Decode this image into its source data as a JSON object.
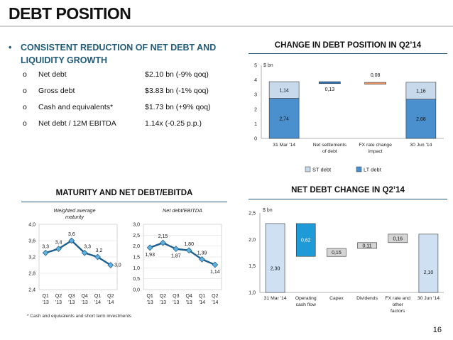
{
  "page": {
    "title": "DEBT POSITION",
    "page_number": "16",
    "footnote": "* Cash and equivalents and short term investments"
  },
  "summary": {
    "bullet": "•",
    "heading": "CONSISTENT REDUCTION OF NET DEBT AND LIQUIDITY GROWTH",
    "marker": "o",
    "items": [
      {
        "label": "Net debt",
        "value": "$2.10 bn (-9% qoq)"
      },
      {
        "label": "Gross debt",
        "value": "$3.83 bn (-1% qoq)"
      },
      {
        "label": "Cash and equivalents*",
        "value": "$1.73 bn (+9% qoq)"
      },
      {
        "label": "Net debt / 12M EBITDA",
        "value": "1.14x (-0.25 p.p.)"
      }
    ]
  },
  "sections": {
    "debt_position": "CHANGE IN DEBT POSITION IN Q2’14",
    "maturity": "MATURITY AND NET DEBT/EBITDA",
    "net_debt_change": "NET DEBT CHANGE IN Q2’14"
  },
  "colors": {
    "accent": "#1f5b78",
    "st": "#c8d9ec",
    "lt": "#4a90cf",
    "mid": "#2f76bd",
    "orange": "#f39b6d",
    "line": "#1f6090",
    "marker": "#5bb0e0",
    "grid": "#d9d9d9"
  },
  "chart_data": [
    {
      "id": "debt-position",
      "type": "bar",
      "unit": "$ bn",
      "ylim": [
        0,
        5
      ],
      "yticks": [
        "0",
        "1",
        "2",
        "3",
        "4",
        "5"
      ],
      "categories": [
        "31 Mar '14",
        "Net settlements of debt",
        "FX rate change impact",
        "30 Jun '14"
      ],
      "series": [
        {
          "name": "ST debt",
          "values": [
            1.14,
            null,
            null,
            1.16
          ]
        },
        {
          "name": "LT debt",
          "values": [
            2.74,
            null,
            null,
            2.68
          ]
        }
      ],
      "floating": [
        {
          "category": "Net settlements of debt",
          "start": 3.88,
          "end": 3.75,
          "label": "0,13"
        },
        {
          "category": "FX rate change impact",
          "start": 3.75,
          "end": 3.83,
          "label": "0,08"
        }
      ],
      "labels": {
        "st": [
          "1,14",
          "1,16"
        ],
        "lt": [
          "2,74",
          "2,68"
        ]
      },
      "legend": "bottom"
    },
    {
      "id": "maturity",
      "type": "line",
      "title": "Weighted average maturity",
      "x": [
        "Q1 '13",
        "Q2 '13",
        "Q3 '13",
        "Q4 '13",
        "Q1 '14",
        "Q2 '14"
      ],
      "values": [
        3.3,
        3.4,
        3.6,
        3.3,
        3.2,
        3.0
      ],
      "labels": [
        "3,3",
        "3,4",
        "3,6",
        "3,3",
        "3,2",
        "3,0"
      ],
      "ylim": [
        2.4,
        4.0
      ],
      "yticks": [
        "2,4",
        "2,8",
        "3,2",
        "3,6",
        "4,0"
      ]
    },
    {
      "id": "net-debt-ebitda",
      "type": "line",
      "title": "Net debt/EBITDA",
      "x": [
        "Q1 '13",
        "Q2 '13",
        "Q3 '13",
        "Q4 '13",
        "Q1 '14",
        "Q2 '14"
      ],
      "values": [
        1.93,
        2.15,
        1.87,
        1.8,
        1.39,
        1.14
      ],
      "labels": [
        "1,93",
        "2,15",
        "1,87",
        "1,80",
        "1,39",
        "1,14"
      ],
      "ylim": [
        0,
        3.0
      ],
      "yticks": [
        "0,0",
        "0,5",
        "1,0",
        "1,5",
        "2,0",
        "2,5",
        "3,0"
      ]
    },
    {
      "id": "net-debt-change",
      "type": "bar",
      "unit": "$ bn",
      "ylim": [
        1.0,
        2.5
      ],
      "yticks": [
        "1,0",
        "1,5",
        "2,0",
        "2,5"
      ],
      "categories": [
        "31 Mar '14",
        "Operating cash flow",
        "Capex",
        "Dividends",
        "FX rate and other factors",
        "30 Jun '14"
      ],
      "bars": [
        {
          "category": "31 Mar '14",
          "start": 1.0,
          "end": 2.3,
          "label": "2,30",
          "kind": "total"
        },
        {
          "category": "Operating cash flow",
          "start": 2.3,
          "end": 1.68,
          "label": "0,62",
          "kind": "decrease"
        },
        {
          "category": "Capex",
          "start": 1.68,
          "end": 1.83,
          "label": "0,15",
          "kind": "increase"
        },
        {
          "category": "Dividends",
          "start": 1.83,
          "end": 1.94,
          "label": "0,11",
          "kind": "increase"
        },
        {
          "category": "FX rate and other factors",
          "start": 1.94,
          "end": 2.1,
          "label": "0,16",
          "kind": "increase"
        },
        {
          "category": "30 Jun '14",
          "start": 1.0,
          "end": 2.1,
          "label": "2,10",
          "kind": "total"
        }
      ]
    }
  ]
}
